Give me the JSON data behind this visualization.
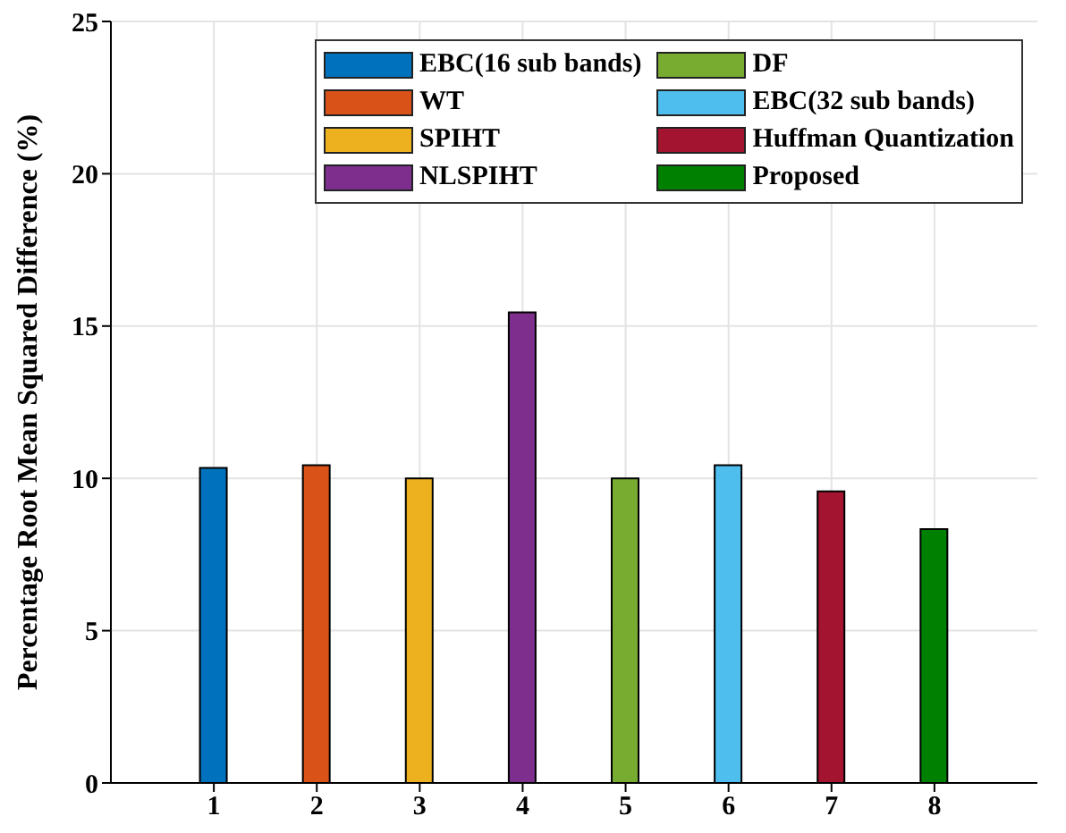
{
  "chart_data": {
    "type": "bar",
    "ylabel": "Percentage Root Mean Squared Difference (%)",
    "xlim": [
      0,
      9
    ],
    "xticks": [
      1,
      2,
      3,
      4,
      5,
      6,
      7,
      8
    ],
    "ylim": [
      0,
      25
    ],
    "yticks": [
      0,
      5,
      10,
      15,
      20,
      25
    ],
    "grid": true,
    "legend": "top right",
    "series": [
      {
        "name": "EBC(16 sub bands)",
        "color": "#0072bd",
        "x": [
          1
        ],
        "values": [
          10.34
        ]
      },
      {
        "name": "WT",
        "color": "#d95319",
        "x": [
          2
        ],
        "values": [
          10.43
        ]
      },
      {
        "name": "SPIHT",
        "color": "#edb120",
        "x": [
          3
        ],
        "values": [
          10.0
        ]
      },
      {
        "name": "NLSPIHT",
        "color": "#7e2f8e",
        "x": [
          4
        ],
        "values": [
          15.45
        ]
      },
      {
        "name": "DF",
        "color": "#77ac30",
        "x": [
          5
        ],
        "values": [
          10.0
        ]
      },
      {
        "name": "EBC(32 sub bands)",
        "color": "#4dbeee",
        "x": [
          6
        ],
        "values": [
          10.43
        ]
      },
      {
        "name": "Huffman Quantization",
        "color": "#a2142f",
        "x": [
          7
        ],
        "values": [
          9.57
        ]
      },
      {
        "name": "Proposed",
        "color": "#008000",
        "x": [
          8
        ],
        "values": [
          8.33
        ]
      }
    ]
  }
}
